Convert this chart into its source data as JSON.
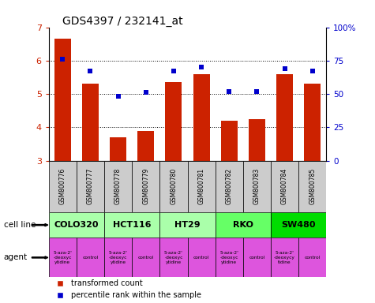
{
  "title": "GDS4397 / 232141_at",
  "samples": [
    "GSM800776",
    "GSM800777",
    "GSM800778",
    "GSM800779",
    "GSM800780",
    "GSM800781",
    "GSM800782",
    "GSM800783",
    "GSM800784",
    "GSM800785"
  ],
  "bar_values": [
    6.65,
    5.3,
    3.7,
    3.9,
    5.35,
    5.6,
    4.2,
    4.25,
    5.6,
    5.3
  ],
  "dot_values": [
    76,
    67,
    48,
    51,
    67,
    70,
    52,
    52,
    69,
    67
  ],
  "ylim": [
    3,
    7
  ],
  "y2lim": [
    0,
    100
  ],
  "bar_color": "#cc2200",
  "dot_color": "#0000cc",
  "yticks": [
    3,
    4,
    5,
    6,
    7
  ],
  "y2ticks": [
    0,
    25,
    50,
    75,
    100
  ],
  "y2tick_labels": [
    "0",
    "25",
    "50",
    "75",
    "100%"
  ],
  "cell_lines": [
    {
      "label": "COLO320",
      "start": 0,
      "end": 1,
      "color": "#aaffaa"
    },
    {
      "label": "HCT116",
      "start": 2,
      "end": 3,
      "color": "#aaffaa"
    },
    {
      "label": "HT29",
      "start": 4,
      "end": 5,
      "color": "#aaffaa"
    },
    {
      "label": "RKO",
      "start": 6,
      "end": 7,
      "color": "#66ff66"
    },
    {
      "label": "SW480",
      "start": 8,
      "end": 9,
      "color": "#00dd00"
    }
  ],
  "agent_labels": [
    "5-aza-2'\n-deoxyc\nytidine",
    "control",
    "5-aza-2'\n-deoxyc\nytidine",
    "control",
    "5-aza-2'\n-deoxyc\nytidine",
    "control",
    "5-aza-2'\n-deoxyc\nytidine",
    "control",
    "5-aza-2'\n-deoxycy\ntidine",
    "control"
  ],
  "agent_color": "#dd55dd",
  "legend_bar_label": "transformed count",
  "legend_dot_label": "percentile rank within the sample",
  "cell_line_label": "cell line",
  "agent_label": "agent",
  "sample_box_color": "#cccccc",
  "grid_color": "#888888"
}
